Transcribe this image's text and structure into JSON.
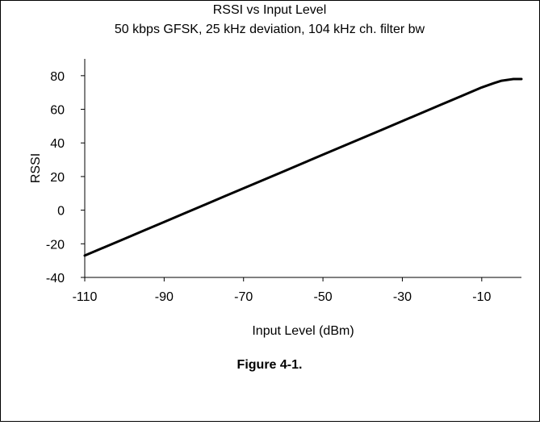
{
  "figure_caption": "Figure 4-1.",
  "chart_data": {
    "type": "line",
    "title": "RSSI vs Input Level",
    "subtitle": "50 kbps GFSK, 25 kHz deviation, 104 kHz ch. filter bw",
    "xlabel": "Input Level (dBm)",
    "ylabel": "RSSI",
    "xlim": [
      -110,
      0
    ],
    "ylim": [
      -40,
      90
    ],
    "x_tick_values": [
      -110,
      -90,
      -70,
      -50,
      -30,
      -10
    ],
    "x_ticks": [
      "-110",
      "-90",
      "-70",
      "-50",
      "-30",
      "-10"
    ],
    "y_tick_values": [
      -40,
      -20,
      0,
      20,
      40,
      60,
      80
    ],
    "y_ticks": [
      "-40",
      "-20",
      "0",
      "20",
      "40",
      "60",
      "80"
    ],
    "grid": false,
    "line_color": "#000000",
    "series": [
      {
        "x": [
          -110,
          -105,
          -100,
          -95,
          -90,
          -85,
          -80,
          -75,
          -70,
          -65,
          -60,
          -55,
          -50,
          -45,
          -40,
          -35,
          -30,
          -25,
          -20,
          -15,
          -10,
          -7,
          -5,
          -2,
          0
        ],
        "values": [
          -27,
          -22,
          -17,
          -12,
          -7,
          -2,
          3,
          8,
          13,
          18,
          23,
          28,
          33,
          38,
          43,
          48,
          53,
          58,
          63,
          68,
          73,
          75.5,
          77,
          78,
          78
        ]
      }
    ]
  }
}
